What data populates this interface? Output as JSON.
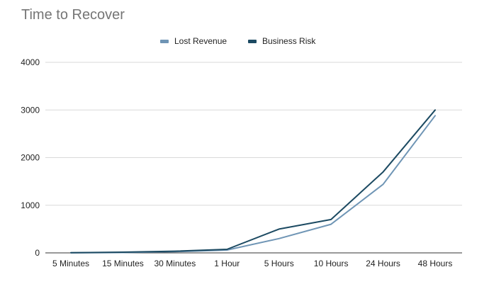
{
  "chart_data": {
    "type": "line",
    "title": "Time to Recover",
    "categories": [
      "5 Minutes",
      "15 Minutes",
      "30 Minutes",
      "1 Hour",
      "5 Hours",
      "10 Hours",
      "24 Hours",
      "48 Hours"
    ],
    "series": [
      {
        "name": "Lost Revenue",
        "color": "#6f95b5",
        "values": [
          2,
          8,
          25,
          60,
          300,
          600,
          1440,
          2880
        ]
      },
      {
        "name": "Business Risk",
        "color": "#1c4a62",
        "values": [
          3,
          15,
          35,
          75,
          500,
          700,
          1700,
          3000
        ]
      }
    ],
    "ylim": [
      0,
      4000
    ],
    "yticks": [
      "0",
      "1000",
      "2000",
      "3000",
      "4000"
    ],
    "grid": true,
    "legend_position": "top-center"
  }
}
